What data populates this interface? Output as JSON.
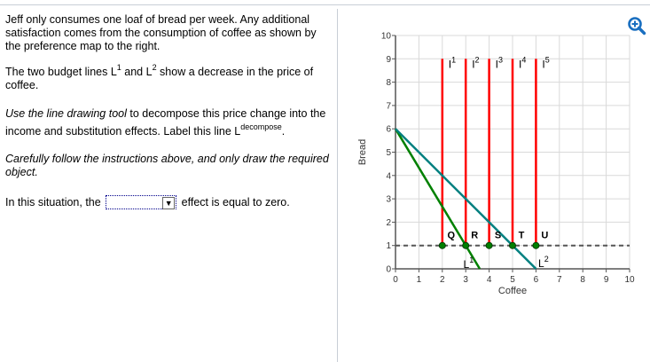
{
  "question": {
    "p1": "Jeff only consumes one loaf of bread per week. Any additional satisfaction comes from the consumption of coffee as shown by the preference map to the right.",
    "p2_a": "The two budget lines L",
    "p2_sup1": "1",
    "p2_b": " and L",
    "p2_sup2": "2",
    "p2_c": " show a decrease in the price of coffee.",
    "p3_italic": "Use the line drawing tool",
    "p3_rest": " to decompose this price change into the income and substitution effects. Label this line L",
    "p3_sup": "decompose",
    "p3_end": ".",
    "p4": "Carefully follow the instructions above, and only draw the required object.",
    "p5_pre": "In this situation, the",
    "p5_select_value": "",
    "p5_post": "effect is equal to zero."
  },
  "toolbar": {
    "zoom_icon": "zoom-in-icon"
  },
  "chart_data": {
    "type": "line",
    "xlabel": "Coffee",
    "ylabel": "Bread",
    "xlim": [
      0,
      10
    ],
    "ylim": [
      0,
      10
    ],
    "x_ticks": [
      "0",
      "1",
      "2",
      "3",
      "4",
      "5",
      "6",
      "7",
      "8",
      "9",
      "10"
    ],
    "y_ticks": [
      "0",
      "1",
      "2",
      "3",
      "4",
      "5",
      "6",
      "7",
      "8",
      "9",
      "10"
    ],
    "grid": true,
    "indifference_curves": [
      {
        "label": "I1",
        "x": 2,
        "y_from": 1,
        "y_to": 9
      },
      {
        "label": "I2",
        "x": 3,
        "y_from": 1,
        "y_to": 9
      },
      {
        "label": "I3",
        "x": 4,
        "y_from": 1,
        "y_to": 9
      },
      {
        "label": "I4",
        "x": 5,
        "y_from": 1,
        "y_to": 9
      },
      {
        "label": "I5",
        "x": 6,
        "y_from": 1,
        "y_to": 9
      }
    ],
    "budget_lines": [
      {
        "label": "L1",
        "color": "#008000",
        "points": [
          [
            0,
            6
          ],
          [
            3.6,
            0
          ]
        ]
      },
      {
        "label": "L2",
        "color": "#008080",
        "points": [
          [
            0,
            6
          ],
          [
            6,
            0
          ]
        ]
      }
    ],
    "dashed_line": {
      "y": 1,
      "x_from": 0,
      "x_to": 10
    },
    "points": [
      {
        "label": "Q",
        "x": 2,
        "y": 1
      },
      {
        "label": "R",
        "x": 3,
        "y": 1
      },
      {
        "label": "S",
        "x": 4,
        "y": 1
      },
      {
        "label": "T",
        "x": 5,
        "y": 1
      },
      {
        "label": "U",
        "x": 6,
        "y": 1
      }
    ]
  }
}
